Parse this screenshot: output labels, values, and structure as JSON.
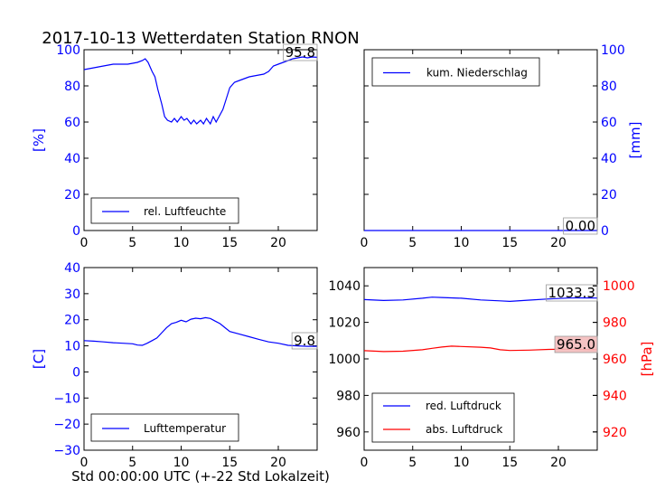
{
  "title": "2017-10-13 Wetterdaten Station RNON",
  "footer_xlabel": "Std 00:00:00 UTC (+-22 Std Lokalzeit)",
  "colors": {
    "blue": "#0000ff",
    "red": "#ff0000",
    "box_red": "#f4bcbc",
    "text": "#000000"
  },
  "chart_data": [
    {
      "id": "humidity",
      "type": "line",
      "xlim": [
        0,
        24
      ],
      "ylim": [
        0,
        100
      ],
      "xticks": [
        0,
        5,
        10,
        15,
        20
      ],
      "yticks": [
        0,
        20,
        40,
        60,
        80,
        100
      ],
      "ylabel": "[%]",
      "ylabel_color": "#0000ff",
      "yaxis_side": "left",
      "legend_location": "lower-left",
      "last_value_label": "95.8",
      "series": [
        {
          "name": "rel. Luftfeuchte",
          "color": "#0000ff",
          "x": [
            0,
            0.5,
            1,
            1.5,
            2,
            2.5,
            3,
            3.5,
            4,
            4.5,
            5,
            5.5,
            6,
            6.3,
            6.6,
            7,
            7.3,
            7.6,
            8,
            8.3,
            8.6,
            9,
            9.3,
            9.6,
            10,
            10.3,
            10.6,
            11,
            11.3,
            11.6,
            12,
            12.3,
            12.6,
            13,
            13.3,
            13.6,
            14,
            14.3,
            14.6,
            15,
            15.5,
            16,
            16.5,
            17,
            17.5,
            18,
            18.5,
            19,
            19.5,
            20,
            20.5,
            21,
            21.5,
            22,
            22.5,
            23,
            23.5,
            24
          ],
          "y": [
            89,
            89.5,
            90,
            90.5,
            91,
            91.5,
            92,
            92,
            92,
            92,
            92.5,
            93,
            94,
            95,
            93,
            88,
            85,
            78,
            70,
            63,
            61,
            60,
            62,
            60,
            63,
            61,
            62,
            59,
            61,
            59,
            61,
            59,
            62,
            59,
            63,
            60,
            64,
            67,
            72,
            79,
            82,
            83,
            84,
            85,
            85.5,
            86,
            86.5,
            88,
            91,
            92,
            93,
            94,
            95,
            95.5,
            96,
            95.5,
            96,
            95.8
          ]
        }
      ]
    },
    {
      "id": "precipitation",
      "type": "line",
      "xlim": [
        0,
        24
      ],
      "ylim": [
        0,
        100
      ],
      "xticks": [
        0,
        5,
        10,
        15,
        20
      ],
      "yticks": [
        0,
        20,
        40,
        60,
        80,
        100
      ],
      "ylabel": "[mm]",
      "ylabel_color": "#0000ff",
      "yaxis_side": "right",
      "legend_location": "upper-left",
      "last_value_label": "0.00",
      "series": [
        {
          "name": "kum. Niederschlag",
          "color": "#0000ff",
          "x": [
            0,
            24
          ],
          "y": [
            0,
            0
          ]
        }
      ]
    },
    {
      "id": "temperature",
      "type": "line",
      "xlim": [
        0,
        24
      ],
      "ylim": [
        -30,
        40
      ],
      "xticks": [
        0,
        5,
        10,
        15,
        20
      ],
      "yticks": [
        -30,
        -20,
        -10,
        0,
        10,
        20,
        30,
        40
      ],
      "ylabel": "[C]",
      "ylabel_color": "#0000ff",
      "yaxis_side": "left",
      "legend_location": "lower-left",
      "last_value_label": "9.8",
      "series": [
        {
          "name": "Lufttemperatur",
          "color": "#0000ff",
          "x": [
            0,
            1,
            2,
            3,
            4,
            5,
            5.5,
            6,
            6.5,
            7,
            7.5,
            8,
            8.5,
            9,
            9.5,
            10,
            10.5,
            11,
            11.5,
            12,
            12.5,
            13,
            13.5,
            14,
            14.5,
            15,
            16,
            17,
            18,
            19,
            20,
            21,
            22,
            23,
            24
          ],
          "y": [
            12,
            11.8,
            11.5,
            11.2,
            11,
            10.8,
            10.3,
            10.2,
            11,
            12,
            13,
            15,
            17,
            18.5,
            19,
            19.8,
            19.2,
            20.2,
            20.6,
            20.4,
            20.8,
            20.5,
            19.5,
            18.5,
            17,
            15.5,
            14.5,
            13.5,
            12.5,
            11.5,
            11,
            10.2,
            10,
            9.8,
            9.8
          ]
        }
      ]
    },
    {
      "id": "pressure",
      "type": "line",
      "xlim": [
        0,
        24
      ],
      "ylim": [
        950,
        1050
      ],
      "xticks": [
        0,
        5,
        10,
        15,
        20
      ],
      "yticks": [
        960,
        980,
        1000,
        1020,
        1040
      ],
      "ylabel": "",
      "yaxis_side": "left",
      "y2lim": [
        910,
        1010
      ],
      "y2ticks": [
        920,
        940,
        960,
        980,
        1000
      ],
      "y2label": "[hPa]",
      "y2label_color": "#ff0000",
      "legend_location": "lower-left",
      "last_value_label": "1033.3",
      "last_value_label_2": "965.0",
      "series": [
        {
          "name": "red. Luftdruck",
          "color": "#0000ff",
          "axis": "left",
          "x": [
            0,
            2,
            4,
            6,
            7,
            8,
            10,
            12,
            14,
            15,
            17,
            19,
            21,
            22,
            24
          ],
          "y": [
            1032.5,
            1032,
            1032.3,
            1033.2,
            1033.8,
            1033.6,
            1033.2,
            1032.3,
            1031.8,
            1031.5,
            1032.2,
            1032.8,
            1033.3,
            1033.4,
            1033.3
          ]
        },
        {
          "name": "abs. Luftdruck",
          "color": "#ff0000",
          "axis": "right",
          "x": [
            0,
            2,
            4,
            6,
            7,
            8,
            9,
            10,
            12,
            13,
            14,
            15,
            17,
            19,
            21,
            22,
            24
          ],
          "y": [
            964.5,
            964,
            964.2,
            965,
            965.8,
            966.5,
            967,
            966.8,
            966.4,
            966,
            965,
            964.6,
            964.8,
            965.2,
            965.3,
            965.2,
            965
          ]
        }
      ]
    }
  ]
}
